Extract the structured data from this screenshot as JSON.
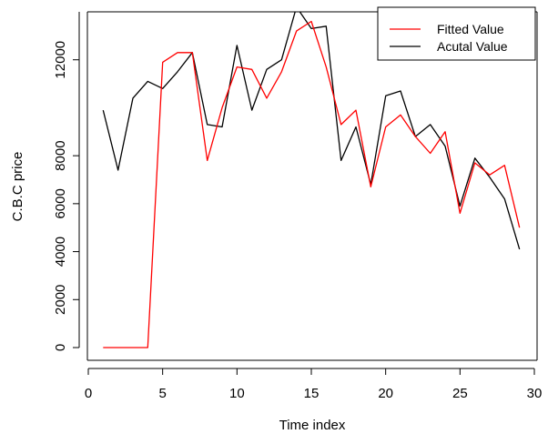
{
  "chart_data": {
    "type": "line",
    "xlabel": "Time index",
    "ylabel": "C.B.C price",
    "xlim": [
      0,
      30
    ],
    "ylim": [
      0,
      14000
    ],
    "x_ticks": [
      0,
      5,
      10,
      15,
      20,
      25,
      30
    ],
    "y_ticks": [
      0,
      2000,
      4000,
      6000,
      8000,
      12000
    ],
    "x_tick_labels": [
      "0",
      "5",
      "10",
      "15",
      "20",
      "25",
      "30"
    ],
    "y_tick_labels": [
      "0",
      "2000",
      "4000",
      "6000",
      "8000",
      "12000"
    ],
    "grid": false,
    "legend_position": "top-right",
    "x": [
      1,
      2,
      3,
      4,
      5,
      6,
      7,
      8,
      9,
      10,
      11,
      12,
      13,
      14,
      15,
      16,
      17,
      18,
      19,
      20,
      21,
      22,
      23,
      24,
      25,
      26,
      27,
      28,
      29
    ],
    "series": [
      {
        "name": "Fitted Value",
        "color": "#ff0000",
        "values": [
          0,
          0,
          0,
          0,
          11900,
          12300,
          12300,
          7800,
          10000,
          11700,
          11600,
          10400,
          11500,
          13200,
          13600,
          11700,
          9300,
          9900,
          6700,
          9200,
          9700,
          8800,
          8100,
          9000,
          5600,
          7700,
          7200,
          7600,
          5000
        ]
      },
      {
        "name": "Acutal Value",
        "color": "#000000",
        "values": [
          9900,
          7400,
          10400,
          11100,
          10800,
          11500,
          12300,
          9300,
          9200,
          12600,
          9900,
          11600,
          12000,
          14200,
          13300,
          13400,
          7800,
          9200,
          6800,
          10500,
          10700,
          8800,
          9300,
          8400,
          5900,
          7900,
          7100,
          6200,
          4100
        ]
      }
    ]
  }
}
